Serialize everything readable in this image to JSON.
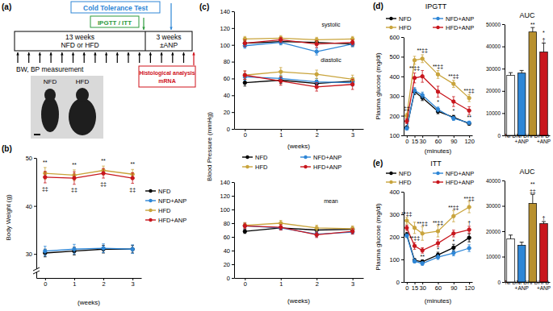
{
  "diagram": {
    "panel_label": "(a)",
    "cold_tolerance_test": "Cold Tolerance Test",
    "ipgtt_itt": "IPGTT / ITT",
    "diet_phase": [
      "13 weeks",
      "NFD or HFD"
    ],
    "anp_phase": [
      "3 weeks",
      "±ANP"
    ],
    "measurement": "BW, BP measurement",
    "analysis": [
      "Histological analysis",
      "mRNA"
    ],
    "photo_labels": [
      "NFD",
      "HFD"
    ]
  },
  "chart_data": [
    {
      "type": "line",
      "panel_label": "(b)",
      "x_label": "(weeks)",
      "y_label": "Body Weight (g)",
      "x": [
        0,
        1,
        2,
        3
      ],
      "xlim": [
        -0.3,
        3.3
      ],
      "xticks": [
        0,
        1,
        2,
        3
      ],
      "ylim": [
        25,
        50
      ],
      "yticks": [
        30,
        40,
        50
      ],
      "marker": "circle",
      "legend": "right",
      "series": [
        {
          "name": "NFD",
          "color": "#000000",
          "values": [
            30.2,
            30.6,
            31.0,
            31.0
          ],
          "errors": [
            0.8,
            0.8,
            0.8,
            0.8
          ]
        },
        {
          "name": "NFD+ANP",
          "color": "#2e86d6",
          "values": [
            30.6,
            31.0,
            31.2,
            31.0
          ],
          "errors": [
            1.0,
            1.0,
            0.9,
            0.9
          ]
        },
        {
          "name": "HFD",
          "color": "#c9a43c",
          "values": [
            46.8,
            46.4,
            47.4,
            46.6
          ],
          "errors": [
            1.2,
            1.1,
            0.9,
            1.0
          ]
        },
        {
          "name": "HFD+ANP",
          "color": "#c8161d",
          "values": [
            46.0,
            45.8,
            46.8,
            45.8
          ],
          "errors": [
            1.2,
            1.3,
            1.0,
            1.1
          ]
        }
      ],
      "annotations": [
        {
          "text": "**",
          "x": 0,
          "y": 48.6
        },
        {
          "text": "**",
          "x": 1,
          "y": 48.2
        },
        {
          "text": "**",
          "x": 2,
          "y": 49.0
        },
        {
          "text": "**",
          "x": 3,
          "y": 48.3
        },
        {
          "text": "‡‡",
          "x": 0,
          "y": 43.2
        },
        {
          "text": "‡‡",
          "x": 1,
          "y": 43.0
        },
        {
          "text": "‡‡",
          "x": 2,
          "y": 44.2
        },
        {
          "text": "‡‡",
          "x": 3,
          "y": 43.0
        }
      ]
    },
    {
      "type": "line",
      "panel_label": "(c)",
      "x_label": "(weeks)",
      "y_label": "Blood Pressure (mmHg)",
      "x": [
        0,
        1,
        2,
        3
      ],
      "xlim": [
        -0.3,
        3.3
      ],
      "xticks": [
        0,
        1,
        2,
        3
      ],
      "ylim": [
        0,
        140
      ],
      "yticks": [
        0,
        20,
        40,
        60,
        80,
        100,
        120,
        140
      ],
      "marker": "circle",
      "series": [
        {
          "color": "#000000",
          "values": [
            102,
            104,
            103,
            101
          ],
          "errors": [
            3,
            3,
            3,
            3
          ]
        },
        {
          "color": "#2e86d6",
          "values": [
            99,
            103,
            92,
            101
          ],
          "errors": [
            3,
            3,
            4,
            3
          ]
        },
        {
          "color": "#c9a43c",
          "values": [
            107,
            108,
            106,
            107
          ],
          "errors": [
            3,
            3,
            3,
            3
          ]
        },
        {
          "color": "#c8161d",
          "values": [
            102,
            106,
            101,
            103
          ],
          "errors": [
            4,
            3,
            4,
            3
          ]
        },
        {
          "color": "#000000",
          "values": [
            55,
            58,
            54,
            57
          ],
          "errors": [
            4,
            4,
            4,
            4
          ]
        },
        {
          "color": "#2e86d6",
          "values": [
            62,
            60,
            56,
            55
          ],
          "errors": [
            4,
            4,
            4,
            4
          ]
        },
        {
          "color": "#c9a43c",
          "values": [
            64,
            68,
            65,
            59
          ],
          "errors": [
            5,
            5,
            5,
            5
          ]
        },
        {
          "color": "#c8161d",
          "values": [
            64,
            57,
            50,
            53
          ],
          "errors": [
            5,
            5,
            5,
            6
          ]
        }
      ],
      "annotations": [
        {
          "text": "systolic",
          "x": 2.4,
          "y": 122
        },
        {
          "text": "diastolic",
          "x": 2.4,
          "y": 80
        }
      ]
    },
    {
      "type": "line",
      "x_label": "(weeks)",
      "x": [
        0,
        1,
        2,
        3
      ],
      "xlim": [
        -0.3,
        3.3
      ],
      "xticks": [
        0,
        1,
        2,
        3
      ],
      "ylim": [
        0,
        140
      ],
      "yticks": [
        0,
        20,
        40,
        60,
        80,
        100,
        120,
        140
      ],
      "marker": "circle",
      "legend": "top",
      "series": [
        {
          "name": "NFD",
          "color": "#000000",
          "values": [
            68,
            73,
            70,
            71
          ],
          "errors": [
            3,
            3,
            3,
            3
          ]
        },
        {
          "name": "NFD+ANP",
          "color": "#2e86d6",
          "values": [
            76,
            73,
            64,
            67
          ],
          "errors": [
            4,
            3,
            4,
            3
          ]
        },
        {
          "name": "HFD",
          "color": "#c9a43c",
          "values": [
            77,
            80,
            73,
            72
          ],
          "errors": [
            4,
            4,
            4,
            4
          ]
        },
        {
          "name": "HFD+ANP",
          "color": "#c8161d",
          "values": [
            76,
            74,
            63,
            68
          ],
          "errors": [
            4,
            4,
            4,
            4
          ]
        }
      ],
      "annotations": [
        {
          "text": "mean",
          "x": 2.4,
          "y": 110
        }
      ]
    },
    {
      "type": "line",
      "panel_label": "(d)",
      "title": "IPGTT",
      "x_label": "(minutes)",
      "y_label": "Plasma glucose (mg/dl)",
      "x": [
        0,
        15,
        30,
        60,
        90,
        120
      ],
      "xlim": [
        -6,
        126
      ],
      "xticks": [
        0,
        15,
        30,
        60,
        90,
        120
      ],
      "ylim": [
        100,
        600
      ],
      "yticks": [
        100,
        200,
        300,
        400,
        500,
        600
      ],
      "marker": "circle",
      "legend": "top",
      "series": [
        {
          "name": "NFD",
          "color": "#000000",
          "values": [
            140,
            322,
            292,
            222,
            192,
            160
          ],
          "errors": [
            8,
            15,
            15,
            12,
            10,
            8
          ]
        },
        {
          "name": "NFD+ANP",
          "color": "#2e86d6",
          "values": [
            135,
            328,
            305,
            232,
            186,
            164
          ],
          "errors": [
            8,
            15,
            15,
            12,
            10,
            8
          ]
        },
        {
          "name": "HFD",
          "color": "#c9a43c",
          "values": [
            200,
            482,
            490,
            410,
            362,
            290
          ],
          "errors": [
            12,
            20,
            20,
            20,
            18,
            18
          ]
        },
        {
          "name": "HFD+ANP",
          "color": "#c8161d",
          "values": [
            172,
            392,
            400,
            322,
            272,
            226
          ],
          "errors": [
            12,
            25,
            30,
            28,
            25,
            20
          ]
        }
      ],
      "annotations": [
        {
          "text": "‡‡",
          "x": 0,
          "y": 228
        },
        {
          "text": "**‡‡",
          "x": 15,
          "y": 434
        },
        {
          "text": "**‡‡",
          "x": 30,
          "y": 522
        },
        {
          "text": "**‡‡",
          "x": 60,
          "y": 440
        },
        {
          "text": "**‡‡",
          "x": 90,
          "y": 390
        },
        {
          "text": "**‡‡",
          "x": 120,
          "y": 318
        },
        {
          "text": "*",
          "x": 60,
          "y": 258
        },
        {
          "text": "*",
          "x": 90,
          "y": 215
        },
        {
          "text": "**",
          "x": 120,
          "y": 180
        }
      ]
    },
    {
      "type": "bar",
      "title": "AUC",
      "categories": [
        "NFD",
        "NFD+ANP",
        "HFD",
        "HFD+ANP"
      ],
      "values": [
        27000,
        28000,
        46500,
        37500
      ],
      "errors": [
        1200,
        1200,
        2000,
        4000
      ],
      "colors": [
        "#ffffff",
        "#2e86d6",
        "#b8902e",
        "#c8161d"
      ],
      "ylim": [
        0,
        50000
      ],
      "yticks": [
        0,
        10000,
        20000,
        30000,
        40000,
        50000
      ],
      "annotations": [
        {
          "text": "**",
          "x": "HFD",
          "y": 49000
        },
        {
          "text": "*",
          "x": "HFD+ANP",
          "y": 45200
        },
        {
          "text": "†",
          "x": "HFD+ANP",
          "y": 42000
        }
      ]
    },
    {
      "type": "line",
      "panel_label": "(e)",
      "title": "ITT",
      "x_label": "(minutes)",
      "y_label": "Plasma glucose (mg/dl)",
      "x": [
        0,
        15,
        30,
        60,
        90,
        120
      ],
      "xlim": [
        -6,
        126
      ],
      "xticks": [
        0,
        15,
        30,
        60,
        90,
        120
      ],
      "ylim": [
        0,
        400
      ],
      "yticks": [
        0,
        100,
        200,
        300,
        400
      ],
      "marker": "circle",
      "legend": "top",
      "series": [
        {
          "name": "NFD",
          "color": "#000000",
          "values": [
            210,
            96,
            90,
            120,
            152,
            196
          ],
          "errors": [
            10,
            8,
            8,
            12,
            15,
            18
          ]
        },
        {
          "name": "NFD+ANP",
          "color": "#2e86d6",
          "values": [
            205,
            92,
            82,
            110,
            128,
            150
          ],
          "errors": [
            8,
            8,
            8,
            10,
            12,
            15
          ]
        },
        {
          "name": "HFD",
          "color": "#c9a43c",
          "values": [
            272,
            240,
            215,
            225,
            292,
            332
          ],
          "errors": [
            15,
            25,
            30,
            25,
            25,
            25
          ]
        },
        {
          "name": "HFD+ANP",
          "color": "#c8161d",
          "values": [
            240,
            160,
            140,
            172,
            215,
            232
          ],
          "errors": [
            12,
            15,
            12,
            15,
            15,
            15
          ]
        }
      ],
      "annotations": [
        {
          "text": "**‡‡",
          "x": 0,
          "y": 292
        },
        {
          "text": "**‡‡",
          "x": 15,
          "y": 185
        },
        {
          "text": "**‡‡",
          "x": 30,
          "y": 250
        },
        {
          "text": "**‡‡",
          "x": 60,
          "y": 255
        },
        {
          "text": "**‡‡",
          "x": 90,
          "y": 322
        },
        {
          "text": "**‡‡",
          "x": 120,
          "y": 362
        },
        {
          "text": "**",
          "x": 30,
          "y": 104
        },
        {
          "text": "*",
          "x": 60,
          "y": 136
        },
        {
          "text": "*",
          "x": 90,
          "y": 172
        },
        {
          "text": "†",
          "x": 120,
          "y": 255
        }
      ]
    },
    {
      "type": "bar",
      "title": "AUC",
      "categories": [
        "NFD",
        "NFD+ANP",
        "HFD",
        "HFD+ANP"
      ],
      "values": [
        17000,
        14500,
        31000,
        23000
      ],
      "errors": [
        1500,
        1200,
        3500,
        800
      ],
      "colors": [
        "#ffffff",
        "#2e86d6",
        "#b8902e",
        "#c8161d"
      ],
      "ylim": [
        0,
        40000
      ],
      "yticks": [
        0,
        10000,
        20000,
        30000,
        40000
      ],
      "annotations": [
        {
          "text": "**",
          "x": "HFD",
          "y": 37800
        },
        {
          "text": "‡‡",
          "x": "HFD",
          "y": 35000
        },
        {
          "text": "†",
          "x": "HFD+ANP",
          "y": 24500
        }
      ]
    }
  ]
}
